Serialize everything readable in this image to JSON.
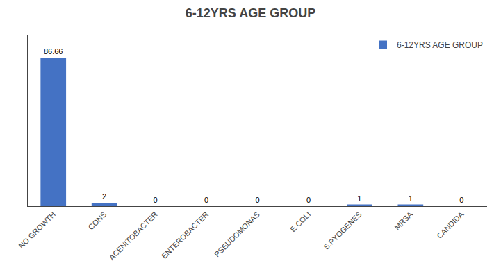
{
  "chart_data": {
    "type": "bar",
    "title": "6-12YRS AGE GROUP",
    "categories": [
      "NO GROWTH",
      "CONS",
      "ACENITOBACTER",
      "ENTEROBACTER",
      "PSEUDOMONAS",
      "E.COLI",
      "S.PYOGENES",
      "MRSA",
      "CANDIDA"
    ],
    "series": [
      {
        "name": "6-12YRS AGE GROUP",
        "color": "#4472C4",
        "values": [
          86.66,
          2,
          0,
          0,
          0,
          0,
          1,
          1,
          0
        ]
      }
    ],
    "ylim": [
      0,
      100
    ],
    "grid": false,
    "legend": "upper right",
    "data_labels": true,
    "tick_labels": "x"
  }
}
